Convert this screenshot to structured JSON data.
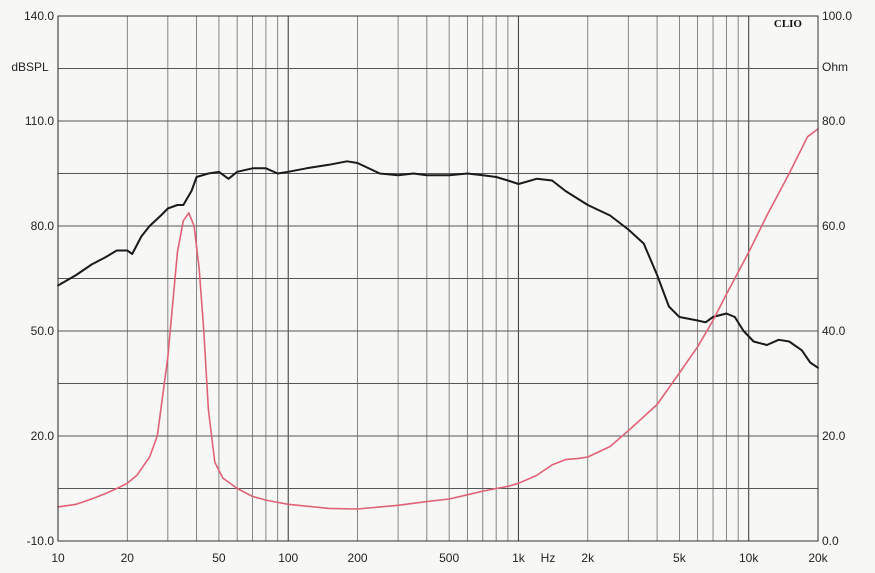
{
  "chart_data": {
    "type": "line",
    "brand": "CLIO",
    "x_axis": {
      "scale": "log",
      "range": [
        10,
        20000
      ],
      "unit_label": "Hz",
      "ticks": [
        {
          "value": 10,
          "label": "10"
        },
        {
          "value": 20,
          "label": "20"
        },
        {
          "value": 50,
          "label": "50"
        },
        {
          "value": 100,
          "label": "100"
        },
        {
          "value": 200,
          "label": "200"
        },
        {
          "value": 500,
          "label": "500"
        },
        {
          "value": 1000,
          "label": "1k"
        },
        {
          "value": 2000,
          "label": "2k"
        },
        {
          "value": 5000,
          "label": "5k"
        },
        {
          "value": 10000,
          "label": "10k"
        },
        {
          "value": 20000,
          "label": "20k"
        }
      ]
    },
    "y_left": {
      "unit_label": "dBSPL",
      "range": [
        -10,
        140
      ],
      "ticks": [
        {
          "value": 140,
          "label": "140.0"
        },
        {
          "value": 110,
          "label": "110.0"
        },
        {
          "value": 80,
          "label": "80.0"
        },
        {
          "value": 50,
          "label": "50.0"
        },
        {
          "value": 20,
          "label": "20.0"
        },
        {
          "value": -10,
          "label": "-10.0"
        }
      ]
    },
    "y_right": {
      "unit_label": "Ohm",
      "range": [
        0,
        100
      ],
      "ticks": [
        {
          "value": 100,
          "label": "100.0"
        },
        {
          "value": 80,
          "label": "80.0"
        },
        {
          "value": 60,
          "label": "60.0"
        },
        {
          "value": 40,
          "label": "40.0"
        },
        {
          "value": 20,
          "label": "20.0"
        },
        {
          "value": 0,
          "label": "0.0"
        }
      ]
    },
    "grid": true,
    "series": [
      {
        "axis": "left",
        "color": "#1a1a1a",
        "points": [
          [
            10,
            63
          ],
          [
            12,
            66
          ],
          [
            14,
            69
          ],
          [
            16,
            71
          ],
          [
            18,
            73
          ],
          [
            20,
            73
          ],
          [
            21,
            72
          ],
          [
            23,
            77
          ],
          [
            25,
            80
          ],
          [
            28,
            83
          ],
          [
            30,
            85
          ],
          [
            33,
            86
          ],
          [
            35,
            86
          ],
          [
            38,
            90
          ],
          [
            40,
            94
          ],
          [
            45,
            95
          ],
          [
            50,
            95.5
          ],
          [
            55,
            93.5
          ],
          [
            60,
            95.5
          ],
          [
            70,
            96.5
          ],
          [
            80,
            96.5
          ],
          [
            90,
            95
          ],
          [
            100,
            95.5
          ],
          [
            120,
            96.5
          ],
          [
            150,
            97.5
          ],
          [
            180,
            98.5
          ],
          [
            200,
            98
          ],
          [
            250,
            95
          ],
          [
            300,
            94.5
          ],
          [
            350,
            95
          ],
          [
            400,
            94.5
          ],
          [
            500,
            94.5
          ],
          [
            600,
            95
          ],
          [
            700,
            94.5
          ],
          [
            800,
            94
          ],
          [
            900,
            93
          ],
          [
            1000,
            92
          ],
          [
            1200,
            93.5
          ],
          [
            1400,
            93
          ],
          [
            1600,
            90
          ],
          [
            2000,
            86
          ],
          [
            2500,
            83
          ],
          [
            3000,
            79
          ],
          [
            3500,
            75
          ],
          [
            4000,
            66
          ],
          [
            4500,
            57
          ],
          [
            5000,
            54
          ],
          [
            6000,
            53
          ],
          [
            6500,
            52.5
          ],
          [
            7000,
            54
          ],
          [
            8000,
            55
          ],
          [
            8700,
            54
          ],
          [
            9500,
            50
          ],
          [
            10500,
            47
          ],
          [
            12000,
            46
          ],
          [
            13500,
            47.5
          ],
          [
            15000,
            47
          ],
          [
            17000,
            44.5
          ],
          [
            18500,
            41
          ],
          [
            20000,
            39.5
          ]
        ]
      },
      {
        "axis": "right",
        "color": "#e06276",
        "points": [
          [
            10,
            6.5
          ],
          [
            12,
            7
          ],
          [
            14,
            8
          ],
          [
            16,
            9
          ],
          [
            18,
            10
          ],
          [
            20,
            11
          ],
          [
            22,
            12.5
          ],
          [
            25,
            16
          ],
          [
            27,
            20
          ],
          [
            30,
            35
          ],
          [
            33,
            55
          ],
          [
            35,
            61
          ],
          [
            37,
            62.5
          ],
          [
            39,
            60
          ],
          [
            41,
            52
          ],
          [
            43,
            40
          ],
          [
            45,
            25
          ],
          [
            48,
            15
          ],
          [
            52,
            12
          ],
          [
            60,
            10
          ],
          [
            70,
            8.5
          ],
          [
            80,
            7.8
          ],
          [
            100,
            7
          ],
          [
            150,
            6.2
          ],
          [
            200,
            6.1
          ],
          [
            300,
            6.8
          ],
          [
            400,
            7.5
          ],
          [
            500,
            8
          ],
          [
            600,
            8.8
          ],
          [
            700,
            9.5
          ],
          [
            800,
            10
          ],
          [
            900,
            10.4
          ],
          [
            1000,
            11
          ],
          [
            1200,
            12.5
          ],
          [
            1400,
            14.5
          ],
          [
            1600,
            15.5
          ],
          [
            1800,
            15.7
          ],
          [
            2000,
            16
          ],
          [
            2500,
            18
          ],
          [
            3000,
            21
          ],
          [
            4000,
            26
          ],
          [
            5000,
            32
          ],
          [
            6000,
            37
          ],
          [
            7000,
            42
          ],
          [
            8000,
            47
          ],
          [
            10000,
            55
          ],
          [
            12000,
            62
          ],
          [
            15000,
            70
          ],
          [
            18000,
            77
          ],
          [
            20000,
            78.5
          ]
        ]
      }
    ]
  }
}
